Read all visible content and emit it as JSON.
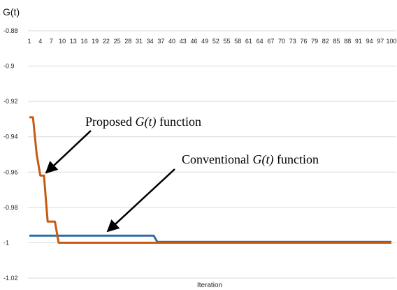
{
  "chart_data": {
    "type": "line",
    "title": "",
    "ylabel": "G(t)",
    "xlabel": "Iteration",
    "ylim": [
      -1.02,
      -0.88
    ],
    "yticks": [
      -0.88,
      -0.9,
      -0.92,
      -0.94,
      -0.96,
      -0.98,
      -1,
      -1.02
    ],
    "ytick_labels": [
      "-0.88",
      "-0.9",
      "-0.92",
      "-0.94",
      "-0.96",
      "-0.98",
      "-1",
      "-1.02"
    ],
    "x_range": [
      1,
      100
    ],
    "xtick_values": [
      1,
      4,
      7,
      10,
      13,
      16,
      19,
      22,
      25,
      28,
      31,
      34,
      37,
      40,
      43,
      46,
      49,
      52,
      55,
      58,
      61,
      64,
      67,
      70,
      73,
      76,
      79,
      82,
      85,
      88,
      91,
      94,
      97,
      100
    ],
    "grid": true,
    "series": [
      {
        "color": "#c55a11",
        "points": [
          [
            1,
            -0.929
          ],
          [
            2,
            -0.929
          ],
          [
            3,
            -0.95
          ],
          [
            4,
            -0.962
          ],
          [
            5,
            -0.962
          ],
          [
            6,
            -0.988
          ],
          [
            7,
            -0.988
          ],
          [
            8,
            -0.988
          ],
          [
            9,
            -1.0
          ],
          [
            100,
            -1.0
          ]
        ]
      },
      {
        "color": "#2e6ea8",
        "points": [
          [
            1,
            -0.996
          ],
          [
            35,
            -0.996
          ],
          [
            36,
            -0.9995
          ],
          [
            100,
            -0.9995
          ]
        ]
      }
    ],
    "annotations": [
      {
        "text_before": "Proposed ",
        "math": "G(t)",
        "text_after": " function",
        "arrow_to": [
          5,
          -0.962
        ]
      },
      {
        "text_before": "Conventional ",
        "math": "G(t)",
        "text_after": " function",
        "arrow_to": [
          22,
          -0.9955
        ]
      }
    ]
  }
}
